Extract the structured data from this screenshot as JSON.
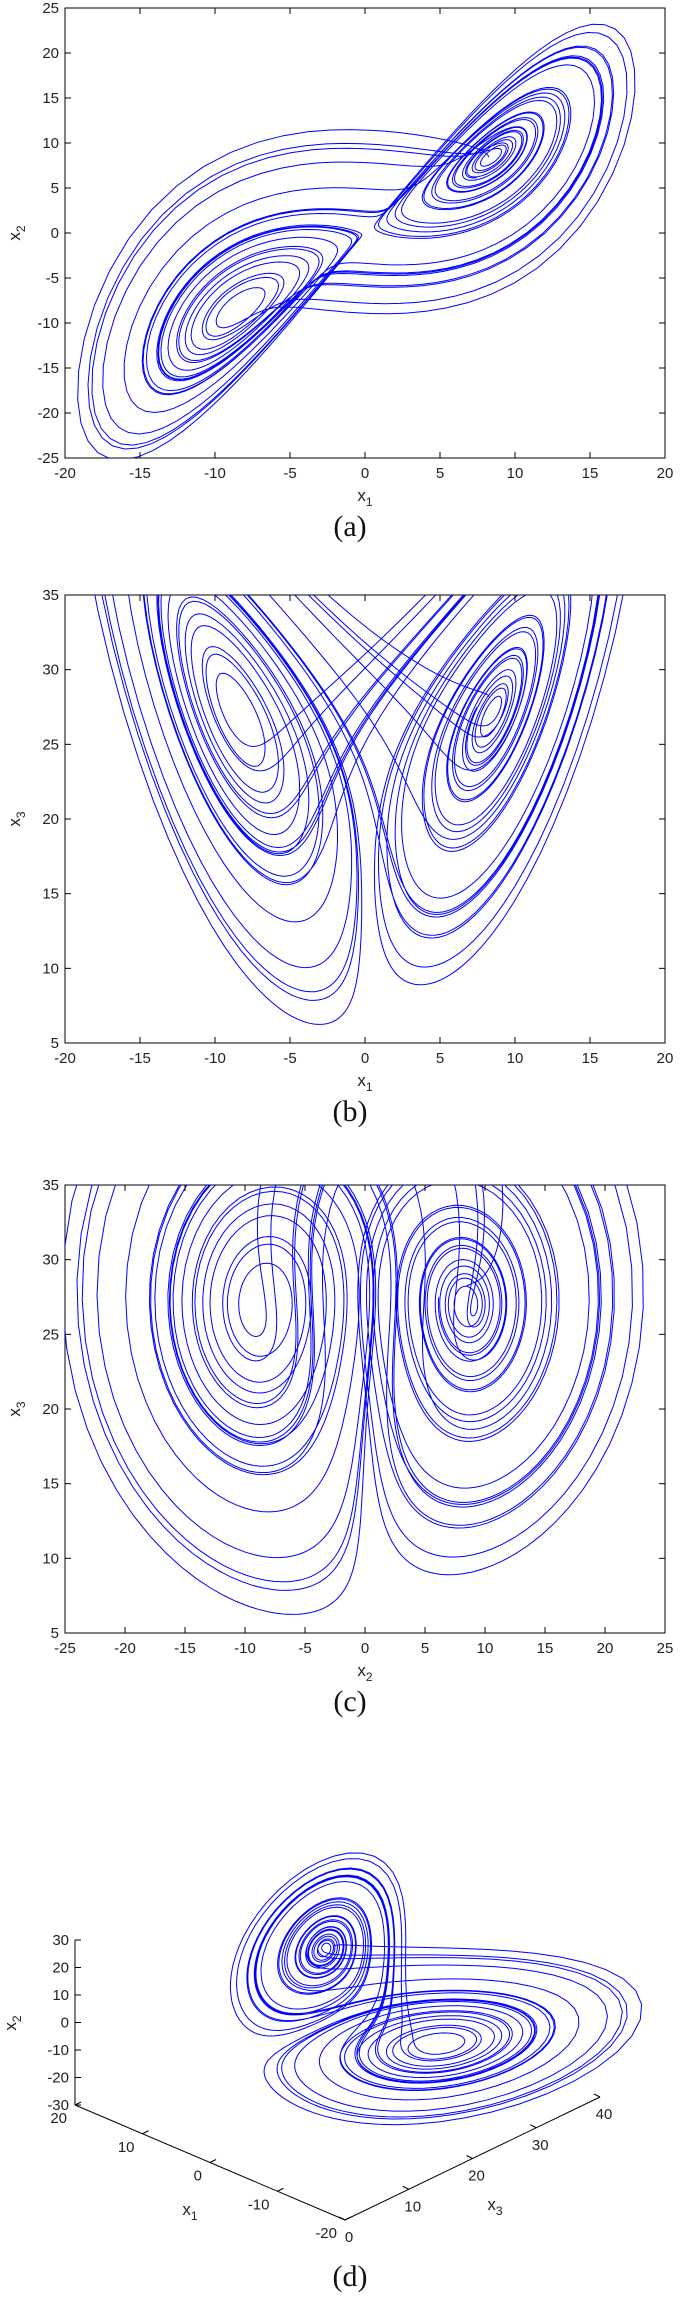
{
  "chart_data": [
    {
      "type": "line",
      "caption": "(a)",
      "xlabel": "x",
      "xlabel_sub": "1",
      "ylabel": "x",
      "ylabel_sub": "2",
      "xlim": [
        -20,
        20
      ],
      "ylim": [
        -25,
        25
      ],
      "xticks": [
        "-20",
        "-15",
        "-10",
        "-5",
        "0",
        "5",
        "10",
        "15",
        "20"
      ],
      "yticks": [
        "-25",
        "-20",
        "-15",
        "-10",
        "-5",
        "0",
        "5",
        "10",
        "15",
        "20",
        "25"
      ],
      "series": [
        {
          "color": "#0000ff",
          "projection": "x1-x2"
        }
      ]
    },
    {
      "type": "line",
      "caption": "(b)",
      "xlabel": "x",
      "xlabel_sub": "1",
      "ylabel": "x",
      "ylabel_sub": "3",
      "xlim": [
        -20,
        20
      ],
      "ylim": [
        5,
        35
      ],
      "xticks": [
        "-20",
        "-15",
        "-10",
        "-5",
        "0",
        "5",
        "10",
        "15",
        "20"
      ],
      "yticks": [
        "5",
        "10",
        "15",
        "20",
        "25",
        "30",
        "35"
      ],
      "series": [
        {
          "color": "#0000ff",
          "projection": "x1-x3"
        }
      ]
    },
    {
      "type": "line",
      "caption": "(c)",
      "xlabel": "x",
      "xlabel_sub": "2",
      "ylabel": "x",
      "ylabel_sub": "3",
      "xlim": [
        -25,
        25
      ],
      "ylim": [
        5,
        35
      ],
      "xticks": [
        "-25",
        "-20",
        "-15",
        "-10",
        "-5",
        "0",
        "5",
        "10",
        "15",
        "20",
        "25"
      ],
      "yticks": [
        "5",
        "10",
        "15",
        "20",
        "25",
        "30",
        "35"
      ],
      "series": [
        {
          "color": "#0000ff",
          "projection": "x2-x3"
        }
      ]
    },
    {
      "type": "line3d",
      "caption": "(d)",
      "xlabel": "x",
      "xlabel_sub": "3",
      "ylabel": "x",
      "ylabel_sub": "1",
      "zlabel": "x",
      "zlabel_sub": "2",
      "x3lim": [
        0,
        40
      ],
      "x1lim": [
        -20,
        20
      ],
      "x2lim": [
        -30,
        30
      ],
      "x3ticks": [
        "0",
        "10",
        "20",
        "30",
        "40"
      ],
      "x1ticks": [
        "20",
        "10",
        "0",
        "-10",
        "-20"
      ],
      "x2ticks": [
        "30",
        "20",
        "10",
        "0",
        "-10",
        "-20",
        "-30"
      ],
      "series": [
        {
          "color": "#0000ff",
          "projection": "3d"
        }
      ]
    }
  ]
}
